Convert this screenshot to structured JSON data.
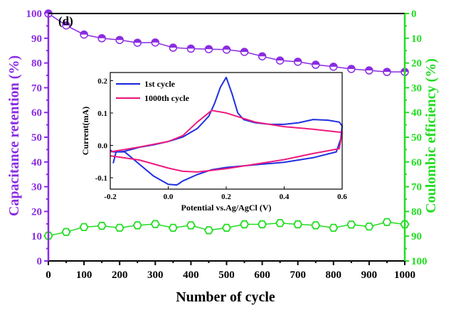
{
  "chart_data": [
    {
      "type": "scatter",
      "panel_label": "(d)",
      "xlabel": "Number of cycle",
      "ylabel_left": "Capacitance retention (%)",
      "ylabel_right": "Coulombic efficiency (%)",
      "xlim": [
        0,
        1000
      ],
      "ylim_left": [
        0,
        100
      ],
      "ylim_right": [
        100,
        0
      ],
      "right_axis_inverted": true,
      "x_ticks": [
        "0",
        "100",
        "200",
        "300",
        "400",
        "500",
        "600",
        "700",
        "800",
        "900",
        "1000"
      ],
      "y_ticks_left": [
        "0",
        "10",
        "20",
        "30",
        "40",
        "50",
        "60",
        "70",
        "80",
        "90",
        "100"
      ],
      "y_ticks_right": [
        "0",
        "10",
        "20",
        "30",
        "40",
        "50",
        "60",
        "70",
        "80",
        "90",
        "100"
      ],
      "series": [
        {
          "axis": "left",
          "color": "#8a2be2",
          "marker": "half-filled-circle",
          "x": [
            0,
            50,
            100,
            150,
            200,
            250,
            300,
            350,
            400,
            450,
            500,
            550,
            600,
            650,
            700,
            750,
            800,
            850,
            900,
            950,
            1000
          ],
          "values": [
            100.0,
            95.2,
            91.5,
            90.0,
            89.3,
            88.2,
            88.3,
            86.2,
            85.8,
            85.6,
            85.4,
            84.5,
            82.7,
            81.0,
            80.5,
            79.3,
            78.5,
            77.6,
            77.0,
            76.4,
            76.4
          ]
        },
        {
          "axis": "right",
          "color": "#22dd22",
          "marker": "hexagon-open",
          "x": [
            0,
            50,
            100,
            150,
            200,
            250,
            300,
            350,
            400,
            450,
            500,
            550,
            600,
            650,
            700,
            750,
            800,
            850,
            900,
            950,
            1000
          ],
          "values": [
            89.8,
            88.3,
            86.3,
            85.8,
            86.6,
            85.6,
            85.1,
            86.6,
            85.6,
            87.6,
            86.6,
            85.2,
            85.2,
            84.7,
            85.2,
            85.6,
            86.6,
            85.3,
            86.1,
            84.3,
            85.2
          ]
        }
      ]
    },
    {
      "type": "line",
      "role": "inset",
      "xlabel": "Potential vs.Ag/AgCl (V)",
      "ylabel": "Current(mA)",
      "xlim": [
        -0.2,
        0.6
      ],
      "ylim": [
        -0.135,
        0.225
      ],
      "x_ticks": [
        "-0.2",
        "0.0",
        "0.2",
        "0.4",
        "0.6"
      ],
      "y_ticks": [
        "0.2",
        "0.1",
        "0.0",
        "-0.1"
      ],
      "legend_position": "top-left",
      "series": [
        {
          "name": "1st cycle",
          "color": "#1f2fe0",
          "x": [
            -0.2,
            -0.19,
            -0.17,
            -0.15,
            -0.1,
            -0.05,
            0.0,
            0.05,
            0.1,
            0.14,
            0.16,
            0.18,
            0.2,
            0.22,
            0.24,
            0.26,
            0.3,
            0.35,
            0.4,
            0.45,
            0.5,
            0.55,
            0.59,
            0.6,
            0.595,
            0.58,
            0.5,
            0.4,
            0.3,
            0.2,
            0.15,
            0.1,
            0.05,
            0.03,
            0.0,
            -0.05,
            -0.1,
            -0.15,
            -0.18,
            -0.19
          ],
          "values": [
            -0.015,
            -0.02,
            -0.02,
            -0.018,
            -0.006,
            0.002,
            0.012,
            0.026,
            0.052,
            0.09,
            0.13,
            0.18,
            0.21,
            0.16,
            0.1,
            0.08,
            0.07,
            0.065,
            0.065,
            0.07,
            0.08,
            0.078,
            0.072,
            0.06,
            0.02,
            -0.02,
            -0.038,
            -0.052,
            -0.06,
            -0.068,
            -0.075,
            -0.09,
            -0.11,
            -0.122,
            -0.12,
            -0.095,
            -0.058,
            -0.02,
            -0.02,
            -0.055
          ]
        },
        {
          "name": "1000th cycle",
          "color": "#ee1a7e",
          "x": [
            -0.2,
            -0.1,
            0.0,
            0.05,
            0.1,
            0.15,
            0.2,
            0.3,
            0.4,
            0.5,
            0.58,
            0.6,
            0.59,
            0.5,
            0.4,
            0.3,
            0.2,
            0.1,
            0.05,
            0.0,
            -0.1,
            -0.2
          ],
          "values": [
            -0.02,
            -0.005,
            0.012,
            0.03,
            0.072,
            0.108,
            0.1,
            0.072,
            0.058,
            0.05,
            0.042,
            0.04,
            -0.01,
            -0.025,
            -0.044,
            -0.058,
            -0.072,
            -0.082,
            -0.08,
            -0.07,
            -0.045,
            -0.032
          ]
        }
      ]
    }
  ]
}
